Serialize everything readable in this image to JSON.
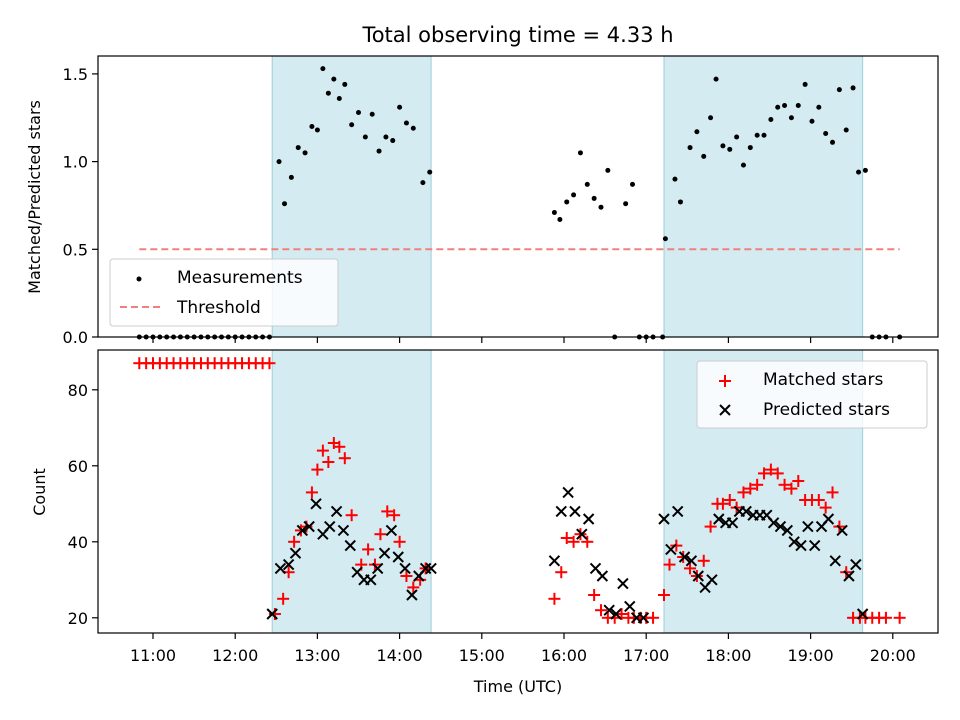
{
  "chart_data": [
    {
      "type": "scatter",
      "title": "Total observing time = 4.33 h",
      "ylabel": "Matched/Predicted stars",
      "ylim": [
        0,
        1.6
      ],
      "yticks": [
        "0.0",
        "0.5",
        "1.0",
        "1.5"
      ],
      "legend_position": "lower-left",
      "shaded_intervals": [
        [
          "12:27",
          "14:23"
        ],
        [
          "17:13",
          "19:38"
        ]
      ],
      "threshold": {
        "name": "Threshold",
        "y": 0.5,
        "x_start": "10:50",
        "x_end": "20:05",
        "color": "#f08080",
        "style": "dashed"
      },
      "series": [
        {
          "name": "Measurements",
          "color": "#000000",
          "x": [
            "10:50",
            "10:55",
            "11:00",
            "11:05",
            "11:10",
            "11:15",
            "11:20",
            "11:25",
            "11:30",
            "11:35",
            "11:40",
            "11:45",
            "11:50",
            "11:55",
            "12:00",
            "12:05",
            "12:10",
            "12:15",
            "12:20",
            "12:25",
            "12:32",
            "12:36",
            "12:41",
            "12:46",
            "12:51",
            "12:56",
            "13:00",
            "13:04",
            "13:08",
            "13:12",
            "13:16",
            "13:20",
            "13:25",
            "13:30",
            "13:35",
            "13:40",
            "13:45",
            "13:50",
            "13:55",
            "14:00",
            "14:05",
            "14:10",
            "14:17",
            "14:22",
            "15:53",
            "15:57",
            "16:02",
            "16:07",
            "16:12",
            "16:17",
            "16:22",
            "16:27",
            "16:32",
            "16:37",
            "16:45",
            "16:50",
            "16:55",
            "17:00",
            "17:05",
            "17:12",
            "17:14",
            "17:21",
            "17:25",
            "17:32",
            "17:37",
            "17:42",
            "17:47",
            "17:51",
            "17:56",
            "18:01",
            "18:06",
            "18:11",
            "18:16",
            "18:21",
            "18:26",
            "18:31",
            "18:36",
            "18:41",
            "18:46",
            "18:51",
            "18:56",
            "19:01",
            "19:06",
            "19:11",
            "19:16",
            "19:21",
            "19:26",
            "19:31",
            "19:35",
            "19:40",
            "19:45",
            "19:50",
            "19:55",
            "20:05"
          ],
          "y": [
            0,
            0,
            0,
            0,
            0,
            0,
            0,
            0,
            0,
            0,
            0,
            0,
            0,
            0,
            0,
            0,
            0,
            0,
            0,
            0,
            1.0,
            0.76,
            0.91,
            1.08,
            1.05,
            1.2,
            1.18,
            1.53,
            1.39,
            1.47,
            1.36,
            1.44,
            1.21,
            1.28,
            1.14,
            1.27,
            1.06,
            1.14,
            1.12,
            1.31,
            1.22,
            1.19,
            0.88,
            0.94,
            0.71,
            0.67,
            0.77,
            0.81,
            1.05,
            0.87,
            0.79,
            0.74,
            0.95,
            0,
            0.76,
            0.87,
            0,
            0,
            0,
            0,
            0.56,
            0.9,
            0.77,
            1.08,
            1.17,
            1.03,
            1.25,
            1.47,
            1.09,
            1.07,
            1.14,
            0.98,
            1.08,
            1.15,
            1.15,
            1.24,
            1.31,
            1.32,
            1.25,
            1.32,
            1.44,
            1.23,
            1.31,
            1.16,
            1.11,
            1.41,
            1.18,
            1.42,
            0.94,
            0.95,
            0,
            0,
            0,
            0
          ]
        }
      ]
    },
    {
      "type": "scatter",
      "xlabel": "Time (UTC)",
      "ylabel": "Count",
      "ylim": [
        16,
        90
      ],
      "yticks": [
        "20",
        "40",
        "60",
        "80"
      ],
      "xticks": [
        "11:00",
        "12:00",
        "13:00",
        "14:00",
        "15:00",
        "16:00",
        "17:00",
        "18:00",
        "19:00",
        "20:00"
      ],
      "legend_position": "upper-right",
      "shaded_intervals": [
        [
          "12:27",
          "14:23"
        ],
        [
          "17:13",
          "19:38"
        ]
      ],
      "series": [
        {
          "name": "Matched stars",
          "color": "#ff0000",
          "marker": "plus",
          "x": [
            "10:50",
            "10:55",
            "11:00",
            "11:05",
            "11:10",
            "11:15",
            "11:20",
            "11:25",
            "11:30",
            "11:35",
            "11:40",
            "11:45",
            "11:50",
            "11:55",
            "12:00",
            "12:05",
            "12:10",
            "12:15",
            "12:20",
            "12:25",
            "12:29",
            "12:35",
            "12:39",
            "12:43",
            "12:48",
            "12:52",
            "12:56",
            "13:00",
            "13:04",
            "13:08",
            "13:12",
            "13:16",
            "13:20",
            "13:25",
            "13:32",
            "13:37",
            "13:42",
            "13:46",
            "13:51",
            "13:56",
            "14:00",
            "14:05",
            "14:10",
            "14:15",
            "14:19",
            "15:53",
            "15:58",
            "16:02",
            "16:07",
            "16:12",
            "16:17",
            "16:22",
            "16:27",
            "16:32",
            "16:37",
            "16:42",
            "16:47",
            "16:51",
            "16:56",
            "17:00",
            "17:05",
            "17:13",
            "17:17",
            "17:22",
            "17:27",
            "17:32",
            "17:37",
            "17:42",
            "17:47",
            "17:52",
            "17:56",
            "18:01",
            "18:06",
            "18:11",
            "18:16",
            "18:21",
            "18:26",
            "18:31",
            "18:36",
            "18:41",
            "18:46",
            "18:51",
            "18:56",
            "19:01",
            "19:06",
            "19:11",
            "19:16",
            "19:21",
            "19:26",
            "19:31",
            "19:36",
            "19:40",
            "19:45",
            "19:50",
            "19:55",
            "20:05"
          ],
          "y": [
            87,
            87,
            87,
            87,
            87,
            87,
            87,
            87,
            87,
            87,
            87,
            87,
            87,
            87,
            87,
            87,
            87,
            87,
            87,
            87,
            21,
            25,
            32,
            40,
            43,
            44,
            53,
            59,
            64,
            61,
            66,
            65,
            62,
            47,
            34,
            38,
            34,
            42,
            48,
            47,
            40,
            31,
            28,
            30,
            33,
            25,
            32,
            41,
            40,
            42,
            40,
            26,
            22,
            20,
            20,
            21,
            20,
            20,
            20,
            20,
            20,
            26,
            34,
            39,
            36,
            33,
            31,
            35,
            44,
            50,
            50,
            51,
            49,
            53,
            54,
            55,
            58,
            59,
            58,
            55,
            54,
            56,
            51,
            51,
            51,
            49,
            53,
            44,
            32,
            20,
            20,
            20,
            20,
            20,
            20,
            20
          ]
        },
        {
          "name": "Predicted stars",
          "color": "#000000",
          "marker": "cross",
          "x": [
            "12:27",
            "12:33",
            "12:39",
            "12:44",
            "12:49",
            "12:54",
            "12:59",
            "13:04",
            "13:09",
            "13:14",
            "13:19",
            "13:24",
            "13:29",
            "13:34",
            "13:39",
            "13:44",
            "13:49",
            "13:54",
            "13:59",
            "14:04",
            "14:09",
            "14:14",
            "14:19",
            "14:23",
            "15:53",
            "15:58",
            "16:03",
            "16:08",
            "16:13",
            "16:18",
            "16:23",
            "16:28",
            "16:33",
            "16:38",
            "16:43",
            "16:48",
            "16:53",
            "16:58",
            "17:13",
            "17:18",
            "17:23",
            "17:28",
            "17:33",
            "17:38",
            "17:43",
            "17:48",
            "17:53",
            "17:58",
            "18:03",
            "18:08",
            "18:13",
            "18:18",
            "18:23",
            "18:28",
            "18:33",
            "18:38",
            "18:43",
            "18:48",
            "18:53",
            "18:58",
            "19:03",
            "19:08",
            "19:13",
            "19:18",
            "19:23",
            "19:28",
            "19:33",
            "19:38"
          ],
          "y": [
            21,
            33,
            34,
            37,
            43,
            44,
            50,
            42,
            44,
            48,
            43,
            39,
            32,
            30,
            30,
            33,
            37,
            43,
            36,
            33,
            26,
            31,
            33,
            33,
            35,
            48,
            53,
            48,
            42,
            46,
            33,
            31,
            22,
            21,
            29,
            23,
            20,
            20,
            46,
            38,
            48,
            36,
            35,
            31,
            28,
            30,
            46,
            45,
            45,
            48,
            48,
            47,
            47,
            47,
            45,
            44,
            43,
            40,
            39,
            44,
            39,
            44,
            46,
            35,
            43,
            31,
            34,
            21
          ]
        }
      ]
    }
  ]
}
